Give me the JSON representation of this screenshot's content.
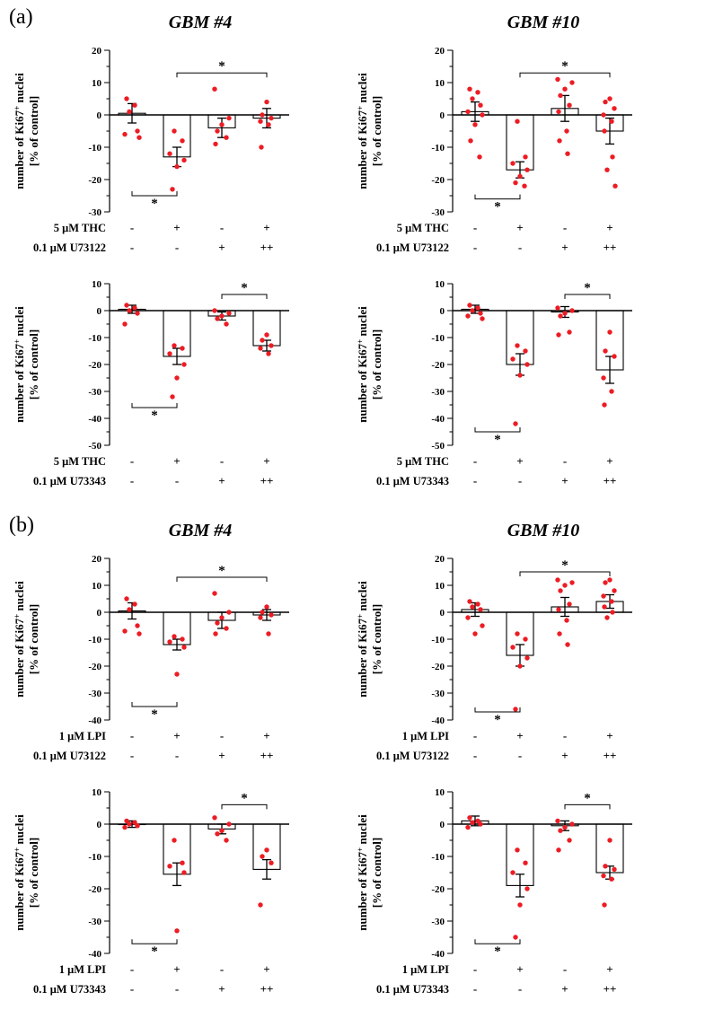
{
  "panels": [
    {
      "label": "(a)",
      "column_titles": [
        "GBM #4",
        "GBM #10"
      ]
    },
    {
      "label": "(b)",
      "column_titles": [
        "GBM #4",
        "GBM #10"
      ]
    }
  ],
  "ylabel": {
    "line1": "number of Ki67⁺ nuclei",
    "line2": "[% of control]"
  },
  "colors": {
    "dot": "#ed1c24",
    "axis": "#000000",
    "bar_fill": "#ffffff"
  },
  "chart_data": [
    {
      "type": "bar",
      "id": "a-gbm4-thc-u73122",
      "panel": "a",
      "title": "GBM #4",
      "ylim": [
        -30,
        20
      ],
      "ytick_step": 10,
      "condition_rows": [
        {
          "label": "5 μM THC",
          "marks": [
            "-",
            "+",
            "-",
            "+"
          ]
        },
        {
          "label": "0.1 μM U73122",
          "marks": [
            "-",
            "-",
            "+",
            "++"
          ]
        }
      ],
      "means": [
        0.5,
        -13,
        -4,
        -1
      ],
      "sem": [
        3,
        3,
        3,
        3
      ],
      "points": [
        [
          5,
          3,
          1,
          -5,
          -6,
          -7
        ],
        [
          -5,
          -8,
          -12,
          -14,
          -16,
          -23
        ],
        [
          8,
          -1,
          -3,
          -5,
          -7,
          -9
        ],
        [
          4,
          0,
          -1,
          -2,
          -3,
          -10
        ]
      ],
      "significance": [
        {
          "from": 0,
          "to": 1,
          "y": -25,
          "label": "*",
          "side": "below"
        },
        {
          "from": 1,
          "to": 3,
          "y": 13,
          "label": "*",
          "side": "above"
        }
      ]
    },
    {
      "type": "bar",
      "id": "a-gbm10-thc-u73122",
      "panel": "a",
      "title": "GBM #10",
      "ylim": [
        -30,
        20
      ],
      "ytick_step": 10,
      "condition_rows": [
        {
          "label": "5 μM THC",
          "marks": [
            "-",
            "+",
            "-",
            "+"
          ]
        },
        {
          "label": "0.1 μM U73122",
          "marks": [
            "-",
            "-",
            "+",
            "++"
          ]
        }
      ],
      "means": [
        1,
        -17,
        2,
        -5
      ],
      "sem": [
        3,
        2.5,
        4,
        4
      ],
      "points": [
        [
          8,
          7,
          5,
          3,
          1,
          0,
          -3,
          -8,
          -13
        ],
        [
          -2,
          -13,
          -15,
          -17,
          -19,
          -21,
          -22
        ],
        [
          11,
          10,
          8,
          6,
          3,
          1,
          -5,
          -8,
          -12
        ],
        [
          5,
          4,
          2,
          0,
          -2,
          -5,
          -13,
          -17,
          -22
        ]
      ],
      "significance": [
        {
          "from": 0,
          "to": 1,
          "y": -26,
          "label": "*",
          "side": "below"
        },
        {
          "from": 1,
          "to": 3,
          "y": 13,
          "label": "*",
          "side": "above"
        }
      ]
    },
    {
      "type": "bar",
      "id": "a-gbm4-thc-u73343",
      "panel": "a",
      "title": "GBM #4",
      "ylim": [
        -50,
        10
      ],
      "ytick_step": 10,
      "condition_rows": [
        {
          "label": "5 μM THC",
          "marks": [
            "-",
            "+",
            "-",
            "+"
          ]
        },
        {
          "label": "0.1 μM U73343",
          "marks": [
            "-",
            "-",
            "+",
            "++"
          ]
        }
      ],
      "means": [
        0.5,
        -17,
        -2,
        -13
      ],
      "sem": [
        1.5,
        3,
        1.5,
        2
      ],
      "points": [
        [
          2,
          1,
          0,
          -1,
          -5
        ],
        [
          -13,
          -14,
          -16,
          -20,
          -25,
          -32
        ],
        [
          0,
          -1,
          -2,
          -3,
          -5
        ],
        [
          -9,
          -11,
          -13,
          -14,
          -16
        ]
      ],
      "significance": [
        {
          "from": 0,
          "to": 1,
          "y": -36,
          "label": "*",
          "side": "below"
        },
        {
          "from": 2,
          "to": 3,
          "y": 6,
          "label": "*",
          "side": "above"
        }
      ]
    },
    {
      "type": "bar",
      "id": "a-gbm10-thc-u73343",
      "panel": "a",
      "title": "GBM #10",
      "ylim": [
        -50,
        10
      ],
      "ytick_step": 10,
      "condition_rows": [
        {
          "label": "5 μM THC",
          "marks": [
            "-",
            "+",
            "-",
            "+"
          ]
        },
        {
          "label": "0.1 μM U73343",
          "marks": [
            "-",
            "-",
            "+",
            "++"
          ]
        }
      ],
      "means": [
        0.5,
        -20,
        -0.5,
        -22
      ],
      "sem": [
        1.5,
        4,
        2,
        5
      ],
      "points": [
        [
          2,
          1,
          0,
          -1,
          -2,
          -3
        ],
        [
          -13,
          -15,
          -18,
          -20,
          -24,
          -42
        ],
        [
          1,
          0,
          -1,
          -2,
          -8,
          -9
        ],
        [
          -8,
          -15,
          -17,
          -25,
          -30,
          -35
        ]
      ],
      "significance": [
        {
          "from": 0,
          "to": 1,
          "y": -45,
          "label": "*",
          "side": "below"
        },
        {
          "from": 2,
          "to": 3,
          "y": 6,
          "label": "*",
          "side": "above"
        }
      ]
    },
    {
      "type": "bar",
      "id": "b-gbm4-lpi-u73122",
      "panel": "b",
      "title": "GBM #4",
      "ylim": [
        -40,
        20
      ],
      "ytick_step": 10,
      "condition_rows": [
        {
          "label": "1 μM LPI",
          "marks": [
            "-",
            "+",
            "-",
            "+"
          ]
        },
        {
          "label": "0.1 μM U73122",
          "marks": [
            "-",
            "-",
            "+",
            "++"
          ]
        }
      ],
      "means": [
        0.5,
        -12,
        -3,
        -1
      ],
      "sem": [
        3,
        2,
        3,
        2
      ],
      "points": [
        [
          5,
          3,
          1,
          -5,
          -7,
          -8
        ],
        [
          -9,
          -10,
          -11,
          -13,
          -23
        ],
        [
          7,
          0,
          -2,
          -4,
          -6,
          -8
        ],
        [
          2,
          0,
          -1,
          -2,
          -8
        ]
      ],
      "significance": [
        {
          "from": 0,
          "to": 1,
          "y": -35,
          "label": "*",
          "side": "below"
        },
        {
          "from": 1,
          "to": 3,
          "y": 13,
          "label": "*",
          "side": "above"
        }
      ]
    },
    {
      "type": "bar",
      "id": "b-gbm10-lpi-u73122",
      "panel": "b",
      "title": "GBM #10",
      "ylim": [
        -40,
        20
      ],
      "ytick_step": 10,
      "condition_rows": [
        {
          "label": "1 μM LPI",
          "marks": [
            "-",
            "+",
            "-",
            "+"
          ]
        },
        {
          "label": "0.1 μM U73122",
          "marks": [
            "-",
            "-",
            "+",
            "++"
          ]
        }
      ],
      "means": [
        1,
        -16,
        2,
        4
      ],
      "sem": [
        2.5,
        4,
        3.5,
        2.5
      ],
      "points": [
        [
          4,
          3,
          2,
          1,
          -2,
          -5,
          -8
        ],
        [
          -8,
          -10,
          -13,
          -17,
          -20,
          -36
        ],
        [
          12,
          11,
          10,
          8,
          3,
          1,
          -3,
          -8,
          -12
        ],
        [
          12,
          11,
          8,
          6,
          4,
          2,
          0,
          -2
        ]
      ],
      "significance": [
        {
          "from": 0,
          "to": 1,
          "y": -37,
          "label": "*",
          "side": "below"
        },
        {
          "from": 1,
          "to": 3,
          "y": 15,
          "label": "*",
          "side": "above"
        }
      ]
    },
    {
      "type": "bar",
      "id": "b-gbm4-lpi-u73343",
      "panel": "b",
      "title": "GBM #4",
      "ylim": [
        -40,
        10
      ],
      "ytick_step": 10,
      "condition_rows": [
        {
          "label": "1 μM LPI",
          "marks": [
            "-",
            "+",
            "-",
            "+"
          ]
        },
        {
          "label": "0.1 μM U73343",
          "marks": [
            "-",
            "-",
            "+",
            "++"
          ]
        }
      ],
      "means": [
        0,
        -15.5,
        -1.5,
        -14
      ],
      "sem": [
        1,
        3.5,
        1.5,
        3
      ],
      "points": [
        [
          1,
          0.5,
          0,
          -0.5,
          -1
        ],
        [
          -5,
          -12,
          -13,
          -15,
          -33
        ],
        [
          2,
          0,
          -2,
          -3,
          -5
        ],
        [
          -8,
          -10,
          -12,
          -25
        ]
      ],
      "significance": [
        {
          "from": 0,
          "to": 1,
          "y": -37,
          "label": "*",
          "side": "below"
        },
        {
          "from": 2,
          "to": 3,
          "y": 6,
          "label": "*",
          "side": "above"
        }
      ]
    },
    {
      "type": "bar",
      "id": "b-gbm10-lpi-u73343",
      "panel": "b",
      "title": "GBM #10",
      "ylim": [
        -40,
        10
      ],
      "ytick_step": 10,
      "condition_rows": [
        {
          "label": "1 μM LPI",
          "marks": [
            "-",
            "+",
            "-",
            "+"
          ]
        },
        {
          "label": "0.1 μM U73343",
          "marks": [
            "-",
            "-",
            "+",
            "++"
          ]
        }
      ],
      "means": [
        1,
        -19,
        -0.5,
        -15
      ],
      "sem": [
        1.5,
        3.5,
        1.5,
        2
      ],
      "points": [
        [
          2,
          1,
          0.5,
          0,
          -1
        ],
        [
          -8,
          -12,
          -15,
          -20,
          -25,
          -35
        ],
        [
          1,
          0,
          -1,
          -2,
          -5,
          -8
        ],
        [
          -5,
          -13,
          -14,
          -16,
          -17,
          -25
        ]
      ],
      "significance": [
        {
          "from": 0,
          "to": 1,
          "y": -37,
          "label": "*",
          "side": "below"
        },
        {
          "from": 2,
          "to": 3,
          "y": 6,
          "label": "*",
          "side": "above"
        }
      ]
    }
  ]
}
